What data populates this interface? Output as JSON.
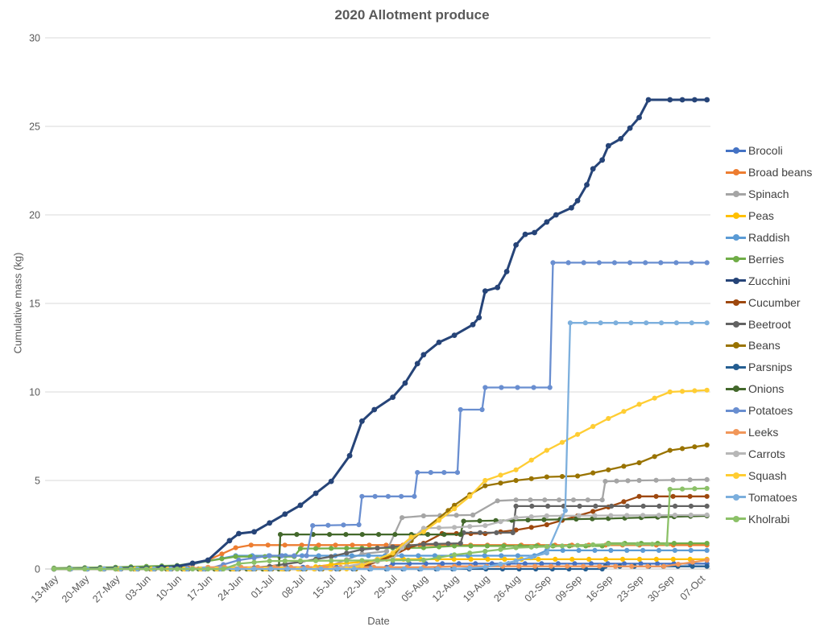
{
  "chart_data": {
    "type": "line",
    "title": "2020 Allotment produce",
    "xlabel": "Date",
    "ylabel": "Cumulative mass (kg)",
    "ylim": [
      0,
      30
    ],
    "ytick_step": 5,
    "grid": true,
    "legend_position": "right",
    "categories": [
      "13-May",
      "20-May",
      "27-May",
      "03-Jun",
      "10-Jun",
      "17-Jun",
      "24-Jun",
      "01-Jul",
      "08-Jul",
      "15-Jul",
      "22-Jul",
      "29-Jul",
      "05-Aug",
      "12-Aug",
      "19-Aug",
      "26-Aug",
      "02-Sep",
      "09-Sep",
      "16-Sep",
      "23-Sep",
      "30-Sep",
      "07-Oct"
    ],
    "series": [
      {
        "name": "Brocoli",
        "color": "#4472C4",
        "points": [
          [
            0,
            0
          ],
          [
            6,
            0
          ],
          [
            7,
            0.1
          ],
          [
            10.8,
            0.1
          ],
          [
            11,
            0.3
          ],
          [
            21.2,
            0.3
          ]
        ]
      },
      {
        "name": "Broad beans",
        "color": "#ED7D31",
        "points": [
          [
            0,
            0
          ],
          [
            4,
            0
          ],
          [
            5,
            0.5
          ],
          [
            5.9,
            1.2
          ],
          [
            6.4,
            1.35
          ],
          [
            21.2,
            1.35
          ]
        ]
      },
      {
        "name": "Spinach",
        "color": "#A5A5A5",
        "points": [
          [
            0,
            0
          ],
          [
            8,
            0
          ],
          [
            9,
            0.2
          ],
          [
            10,
            0.85
          ],
          [
            10.8,
            1.0
          ],
          [
            11.3,
            2.9
          ],
          [
            12,
            3.0
          ],
          [
            13.6,
            3.05
          ],
          [
            14.4,
            3.85
          ],
          [
            15,
            3.9
          ],
          [
            17.8,
            3.9
          ],
          [
            17.9,
            4.95
          ],
          [
            19,
            5.0
          ],
          [
            21.2,
            5.05
          ]
        ]
      },
      {
        "name": "Peas",
        "color": "#FFC000",
        "points": [
          [
            0,
            0
          ],
          [
            8,
            0
          ],
          [
            9,
            0.25
          ],
          [
            10,
            0.4
          ],
          [
            10.8,
            0.55
          ],
          [
            21.2,
            0.55
          ]
        ]
      },
      {
        "name": "Raddish",
        "color": "#5B9BD5",
        "points": [
          [
            0,
            0
          ],
          [
            3,
            0
          ],
          [
            4,
            0.1
          ],
          [
            5,
            0.45
          ],
          [
            5.9,
            0.75
          ],
          [
            15.6,
            0.75
          ],
          [
            16,
            1.05
          ],
          [
            21.2,
            1.05
          ]
        ]
      },
      {
        "name": "Berries",
        "color": "#70AD47",
        "points": [
          [
            0,
            0.05
          ],
          [
            2,
            0.1
          ],
          [
            4,
            0.2
          ],
          [
            5,
            0.45
          ],
          [
            5.9,
            0.7
          ],
          [
            7.8,
            0.7
          ],
          [
            8,
            1.15
          ],
          [
            12,
            1.2
          ],
          [
            13,
            1.3
          ],
          [
            17.8,
            1.3
          ],
          [
            18,
            1.45
          ],
          [
            21.2,
            1.45
          ]
        ]
      },
      {
        "name": "Zucchini",
        "color": "#264478",
        "points": [
          [
            0,
            0
          ],
          [
            3,
            0.05
          ],
          [
            4,
            0.15
          ],
          [
            5,
            0.5
          ],
          [
            5.7,
            1.6
          ],
          [
            6,
            2.0
          ],
          [
            6.5,
            2.1
          ],
          [
            7,
            2.6
          ],
          [
            8,
            3.6
          ],
          [
            9,
            4.95
          ],
          [
            9.6,
            6.4
          ],
          [
            10,
            8.35
          ],
          [
            10.4,
            9.0
          ],
          [
            11,
            9.7
          ],
          [
            11.4,
            10.5
          ],
          [
            11.8,
            11.6
          ],
          [
            12,
            12.1
          ],
          [
            12.5,
            12.8
          ],
          [
            13,
            13.2
          ],
          [
            13.6,
            13.8
          ],
          [
            13.8,
            14.2
          ],
          [
            14,
            15.7
          ],
          [
            14.4,
            15.9
          ],
          [
            14.7,
            16.8
          ],
          [
            15,
            18.3
          ],
          [
            15.3,
            18.9
          ],
          [
            15.6,
            19.0
          ],
          [
            16,
            19.6
          ],
          [
            16.3,
            20.0
          ],
          [
            16.8,
            20.4
          ],
          [
            17,
            20.8
          ],
          [
            17.3,
            21.7
          ],
          [
            17.5,
            22.6
          ],
          [
            17.8,
            23.1
          ],
          [
            18,
            23.9
          ],
          [
            18.4,
            24.3
          ],
          [
            18.7,
            24.9
          ],
          [
            19,
            25.5
          ],
          [
            19.3,
            26.5
          ],
          [
            20,
            26.5
          ],
          [
            21.2,
            26.5
          ]
        ]
      },
      {
        "name": "Cucumber",
        "color": "#9E480E",
        "points": [
          [
            0,
            0
          ],
          [
            9,
            0
          ],
          [
            10,
            0.1
          ],
          [
            11,
            0.75
          ],
          [
            11.5,
            1.2
          ],
          [
            12,
            1.45
          ],
          [
            12.6,
            2.0
          ],
          [
            14,
            2.0
          ],
          [
            15,
            2.2
          ],
          [
            16,
            2.5
          ],
          [
            17,
            3.0
          ],
          [
            18,
            3.5
          ],
          [
            19,
            4.1
          ],
          [
            21.2,
            4.1
          ]
        ]
      },
      {
        "name": "Beetroot",
        "color": "#636363",
        "points": [
          [
            0,
            0
          ],
          [
            6,
            0
          ],
          [
            7,
            0.15
          ],
          [
            8,
            0.4
          ],
          [
            9,
            0.7
          ],
          [
            10,
            1.1
          ],
          [
            11,
            1.25
          ],
          [
            12,
            1.4
          ],
          [
            13.2,
            1.45
          ],
          [
            13.3,
            2.05
          ],
          [
            14.9,
            2.05
          ],
          [
            15,
            3.55
          ],
          [
            21.2,
            3.55
          ]
        ]
      },
      {
        "name": "Beans",
        "color": "#997300",
        "points": [
          [
            0,
            0
          ],
          [
            9.8,
            0
          ],
          [
            10,
            0.3
          ],
          [
            11,
            0.8
          ],
          [
            11.6,
            1.6
          ],
          [
            12,
            2.2
          ],
          [
            12.8,
            3.3
          ],
          [
            13,
            3.6
          ],
          [
            13.5,
            4.2
          ],
          [
            14,
            4.7
          ],
          [
            15,
            5.0
          ],
          [
            16,
            5.2
          ],
          [
            17,
            5.25
          ],
          [
            18,
            5.6
          ],
          [
            19,
            6.0
          ],
          [
            20,
            6.7
          ],
          [
            21.2,
            7.0
          ]
        ]
      },
      {
        "name": "Parsnips",
        "color": "#255E91",
        "points": [
          [
            0,
            0
          ],
          [
            17.8,
            0
          ],
          [
            17.9,
            0.15
          ],
          [
            21.2,
            0.15
          ]
        ]
      },
      {
        "name": "Onions",
        "color": "#43682B",
        "points": [
          [
            0,
            0
          ],
          [
            7.3,
            0
          ],
          [
            7.35,
            1.95
          ],
          [
            13.2,
            1.95
          ],
          [
            13.3,
            2.7
          ],
          [
            18,
            2.85
          ],
          [
            21.2,
            3.0
          ]
        ]
      },
      {
        "name": "Potatoes",
        "color": "#698ED0",
        "points": [
          [
            0,
            0
          ],
          [
            5,
            0
          ],
          [
            6,
            0.5
          ],
          [
            7,
            0.75
          ],
          [
            8.2,
            0.75
          ],
          [
            8.4,
            2.45
          ],
          [
            9.9,
            2.5
          ],
          [
            10,
            4.1
          ],
          [
            11.7,
            4.1
          ],
          [
            11.8,
            5.45
          ],
          [
            13.1,
            5.45
          ],
          [
            13.2,
            9.0
          ],
          [
            13.9,
            9.0
          ],
          [
            14,
            10.25
          ],
          [
            16.1,
            10.25
          ],
          [
            16.2,
            17.3
          ],
          [
            21.2,
            17.3
          ]
        ]
      },
      {
        "name": "Leeks",
        "color": "#F1975A",
        "points": [
          [
            0,
            0
          ],
          [
            4,
            0
          ],
          [
            5,
            0.1
          ],
          [
            12,
            0.1
          ],
          [
            13,
            0.15
          ],
          [
            19.8,
            0.15
          ],
          [
            21.2,
            0.5
          ]
        ]
      },
      {
        "name": "Carrots",
        "color": "#B7B7B7",
        "points": [
          [
            0,
            0
          ],
          [
            9,
            0
          ],
          [
            10,
            0.3
          ],
          [
            11,
            0.55
          ],
          [
            11.3,
            1.2
          ],
          [
            12,
            2.3
          ],
          [
            13,
            2.35
          ],
          [
            14,
            2.45
          ],
          [
            15,
            2.9
          ],
          [
            16,
            3.0
          ],
          [
            21.2,
            3.05
          ]
        ]
      },
      {
        "name": "Squash",
        "color": "#FFCD33",
        "points": [
          [
            0,
            0
          ],
          [
            9.5,
            0
          ],
          [
            10,
            0.2
          ],
          [
            11,
            0.9
          ],
          [
            11.6,
            1.8
          ],
          [
            12,
            2.1
          ],
          [
            13,
            3.4
          ],
          [
            13.5,
            4.1
          ],
          [
            14,
            5.0
          ],
          [
            14.5,
            5.3
          ],
          [
            15,
            5.6
          ],
          [
            16,
            6.7
          ],
          [
            17,
            7.6
          ],
          [
            18,
            8.5
          ],
          [
            19,
            9.3
          ],
          [
            20,
            10.0
          ],
          [
            21.2,
            10.1
          ]
        ]
      },
      {
        "name": "Tomatoes",
        "color": "#7CAFDD",
        "points": [
          [
            0,
            0
          ],
          [
            13,
            0
          ],
          [
            14,
            0.1
          ],
          [
            15,
            0.45
          ],
          [
            16,
            0.9
          ],
          [
            16.6,
            3.3
          ],
          [
            16.76,
            13.9
          ],
          [
            21.2,
            13.9
          ]
        ]
      },
      {
        "name": "Kholrabi",
        "color": "#8CC168",
        "points": [
          [
            0,
            0
          ],
          [
            5.5,
            0
          ],
          [
            6,
            0.3
          ],
          [
            7,
            0.45
          ],
          [
            12,
            0.5
          ],
          [
            13,
            0.8
          ],
          [
            15,
            1.2
          ],
          [
            18,
            1.4
          ],
          [
            19.9,
            1.4
          ],
          [
            20,
            4.5
          ],
          [
            21.2,
            4.55
          ]
        ]
      }
    ]
  },
  "styles": {
    "title_color": "#595959",
    "axis_text_color": "#595959",
    "legend_text_color": "#404040",
    "gridline_color": "#D9D9D9",
    "axis_line_color": "#C0C0C0",
    "background": "#FFFFFF"
  }
}
